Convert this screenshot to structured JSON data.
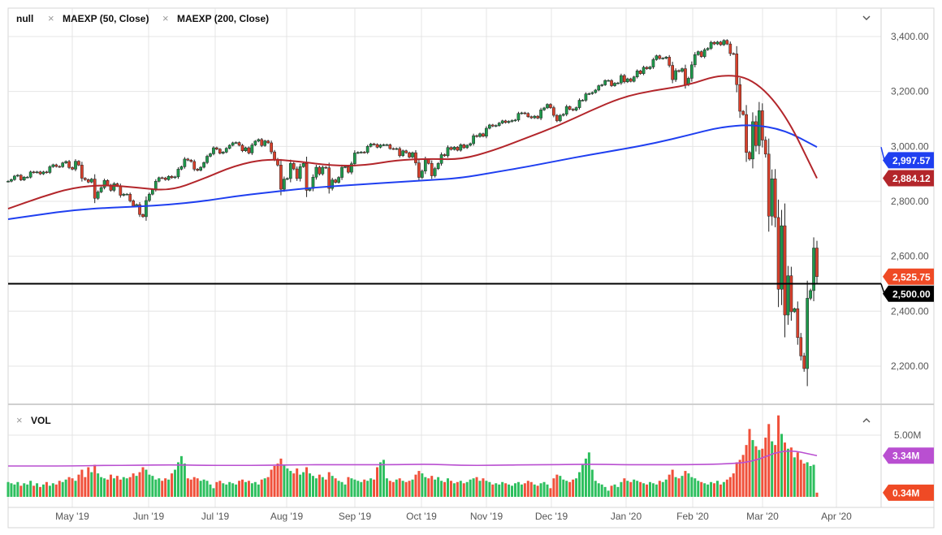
{
  "header": {
    "symbol_label": "null",
    "indicators": [
      {
        "label": "MAEXP (50, Close)",
        "color": "#b3262b"
      },
      {
        "label": "MAEXP (200, Close)",
        "color": "#1f3ff0"
      }
    ],
    "close_symbol": "×",
    "collapse_icon": "chevron-down-icon"
  },
  "volume_pane": {
    "label": "VOL",
    "close_symbol": "×",
    "collapse_icon": "chevron-up-icon"
  },
  "colors": {
    "up": "#1e9a4c",
    "down": "#d9402b",
    "vol_up": "#2dbf5e",
    "vol_down": "#f0503a",
    "ma50": "#b3262b",
    "ma200": "#1f3ff0",
    "vol_ma": "#b94fd1",
    "last_price": "#ef4a25",
    "grid": "#e4e4e4"
  },
  "chart_data": {
    "type": "candlestick",
    "title": "",
    "x_tick_labels": [
      "May '19",
      "Jun '19",
      "Jul '19",
      "Aug '19",
      "Sep '19",
      "Oct '19",
      "Nov '19",
      "Dec '19",
      "Jan '20",
      "Feb '20",
      "Mar '20",
      "Apr '20"
    ],
    "y_tick_labels": [
      "3,400.00",
      "3,200.00",
      "3,000.00",
      "2,800.00",
      "2,600.00",
      "2,400.00",
      "2,200.00"
    ],
    "y_ticks": [
      3400,
      3200,
      3000,
      2800,
      2600,
      2400,
      2200
    ],
    "ylim": [
      2130,
      3500
    ],
    "grid": true,
    "closes": [
      2873,
      2879,
      2892,
      2895,
      2878,
      2888,
      2888,
      2907,
      2905,
      2907,
      2900,
      2907,
      2905,
      2926,
      2933,
      2927,
      2926,
      2940,
      2945,
      2923,
      2917,
      2946,
      2932,
      2884,
      2879,
      2870,
      2881,
      2811,
      2834,
      2850,
      2876,
      2859,
      2840,
      2864,
      2856,
      2822,
      2826,
      2826,
      2802,
      2783,
      2788,
      2752,
      2744,
      2803,
      2826,
      2843,
      2873,
      2886,
      2885,
      2879,
      2891,
      2886,
      2889,
      2917,
      2926,
      2954,
      2950,
      2945,
      2917,
      2913,
      2924,
      2941,
      2964,
      2973,
      2995,
      2990,
      2975,
      2979,
      2993,
      3004,
      3013,
      3014,
      3004,
      2984,
      2995,
      2976,
      3005,
      3019,
      3025,
      3003,
      3020,
      3013,
      2980,
      2953,
      2932,
      2844,
      2881,
      2883,
      2938,
      2918,
      2883,
      2926,
      2938,
      2840,
      2847,
      2888,
      2924,
      2900,
      2924,
      2922,
      2847,
      2878,
      2869,
      2887,
      2924,
      2926,
      2906,
      2937,
      2976,
      2978,
      2979,
      2978,
      3000,
      3009,
      3007,
      2997,
      3005,
      3006,
      3006,
      2992,
      2991,
      2992,
      2966,
      2984,
      2977,
      2961,
      2977,
      2940,
      2887,
      2910,
      2952,
      2938,
      2893,
      2919,
      2938,
      2970,
      2966,
      2996,
      2989,
      2997,
      2986,
      3006,
      2995,
      3004,
      3010,
      3039,
      3036,
      3046,
      3037,
      3066,
      3078,
      3074,
      3076,
      3085,
      3093,
      3087,
      3091,
      3094,
      3096,
      3120,
      3122,
      3120,
      3108,
      3104,
      3110,
      3103,
      3133,
      3140,
      3153,
      3141,
      3113,
      3093,
      3113,
      3117,
      3145,
      3135,
      3132,
      3141,
      3168,
      3168,
      3191,
      3192,
      3196,
      3205,
      3221,
      3224,
      3240,
      3240,
      3221,
      3230,
      3231,
      3258,
      3235,
      3246,
      3237,
      3253,
      3275,
      3265,
      3288,
      3283,
      3289,
      3316,
      3330,
      3320,
      3321,
      3325,
      3295,
      3243,
      3276,
      3273,
      3283,
      3225,
      3248,
      3297,
      3334,
      3345,
      3327,
      3352,
      3357,
      3379,
      3373,
      3380,
      3370,
      3386,
      3373,
      3338,
      3337,
      3225,
      3128,
      3116,
      2978,
      2954,
      3090,
      3003,
      3130,
      3023,
      2972,
      2746,
      2882,
      2741,
      2480,
      2711,
      2386,
      2529,
      2398,
      2409,
      2304,
      2237,
      2191,
      2447,
      2475,
      2630,
      2525.75
    ],
    "series": [
      {
        "name": "MAEXP (50, Close)",
        "values": [
          2773,
          2815,
          2850,
          2860,
          2850,
          2838,
          2880,
          2930,
          2955,
          2945,
          2930,
          2930,
          2950,
          2955,
          2952,
          2985,
          3030,
          3075,
          3130,
          3180,
          3205,
          3222,
          3262,
          3250,
          3125,
          2884.12
        ]
      },
      {
        "name": "MAEXP (200, Close)",
        "values": [
          2735,
          2752,
          2768,
          2776,
          2781,
          2788,
          2800,
          2818,
          2832,
          2845,
          2855,
          2862,
          2870,
          2877,
          2885,
          2905,
          2925,
          2948,
          2970,
          2990,
          3012,
          3040,
          3070,
          3080,
          3060,
          2997.57
        ]
      }
    ],
    "horizontal_line": {
      "value": 2500,
      "label": "2,500.00"
    },
    "value_tags": [
      {
        "label": "2,997.57",
        "value": 2997.57,
        "color": "#1f3ff0"
      },
      {
        "label": "2,884.12",
        "value": 2884.12,
        "color": "#b3262b"
      },
      {
        "label": "2,525.75",
        "value": 2525.75,
        "color": "#ef4a25"
      }
    ],
    "volume": {
      "unit": "M",
      "ylim": [
        0,
        7
      ],
      "y_tick_labels": [
        "5.00M"
      ],
      "values": [
        1.2,
        1.1,
        1.0,
        1.2,
        0.9,
        1.1,
        1.0,
        1.3,
        0.9,
        1.1,
        0.8,
        1.0,
        1.2,
        0.9,
        1.1,
        1.0,
        1.3,
        1.2,
        1.4,
        1.6,
        1.5,
        1.3,
        1.8,
        2.2,
        1.6,
        2.4,
        2.0,
        2.6,
        1.9,
        1.6,
        1.5,
        1.4,
        1.8,
        1.5,
        1.7,
        1.4,
        1.6,
        1.5,
        1.6,
        1.9,
        1.7,
        2.0,
        2.4,
        2.2,
        1.8,
        1.7,
        1.4,
        1.5,
        1.3,
        1.5,
        1.4,
        1.9,
        2.2,
        2.8,
        3.3,
        2.7,
        1.5,
        1.4,
        1.6,
        1.5,
        1.3,
        1.4,
        1.3,
        1.0,
        0.7,
        1.2,
        1.3,
        1.1,
        1.0,
        1.2,
        1.1,
        1.0,
        1.3,
        1.4,
        1.2,
        1.3,
        1.1,
        1.2,
        1.0,
        1.4,
        1.5,
        1.6,
        2.2,
        2.5,
        2.7,
        3.1,
        2.6,
        2.3,
        2.1,
        1.9,
        2.3,
        1.8,
        2.0,
        2.4,
        1.9,
        1.7,
        1.5,
        1.8,
        1.6,
        1.4,
        2.0,
        1.7,
        1.5,
        1.3,
        1.2,
        1.0,
        1.6,
        1.5,
        1.4,
        1.3,
        1.2,
        1.4,
        1.3,
        1.5,
        1.4,
        2.4,
        2.8,
        3.0,
        1.5,
        1.3,
        1.2,
        1.4,
        1.5,
        1.3,
        1.2,
        1.3,
        1.4,
        1.8,
        2.1,
        1.9,
        1.6,
        1.5,
        1.7,
        1.4,
        1.6,
        1.3,
        1.2,
        1.5,
        1.3,
        1.1,
        1.2,
        1.3,
        1.1,
        1.2,
        1.4,
        1.5,
        1.6,
        1.3,
        1.5,
        1.3,
        1.2,
        1.0,
        1.1,
        1.0,
        1.2,
        1.1,
        1.0,
        0.9,
        1.1,
        1.2,
        1.0,
        1.1,
        1.3,
        1.2,
        1.0,
        0.9,
        1.1,
        1.2,
        1.0,
        0.7,
        1.5,
        1.8,
        1.7,
        1.4,
        1.3,
        1.2,
        1.4,
        1.5,
        2.0,
        2.6,
        3.1,
        3.6,
        2.2,
        1.3,
        1.1,
        1.0,
        0.8,
        0.5,
        0.9,
        1.0,
        0.8,
        1.2,
        1.5,
        1.3,
        1.2,
        1.4,
        1.3,
        1.2,
        1.1,
        1.0,
        1.2,
        1.1,
        1.0,
        1.3,
        1.2,
        1.4,
        1.8,
        2.2,
        1.6,
        1.5,
        1.7,
        2.1,
        1.9,
        1.6,
        1.5,
        1.3,
        1.2,
        1.1,
        1.0,
        1.2,
        1.1,
        1.3,
        1.0,
        1.2,
        1.4,
        1.6,
        1.9,
        2.8,
        3.0,
        3.4,
        4.2,
        5.5,
        4.6,
        4.1,
        3.8,
        3.9,
        4.8,
        5.9,
        4.5,
        4.2,
        6.6,
        5.1,
        4.4,
        3.9,
        4.0,
        3.2,
        3.6,
        3.0,
        2.7,
        2.8,
        2.5,
        2.6,
        0.34
      ],
      "ma_values": [
        2.5,
        2.5,
        2.5,
        2.55,
        2.55,
        2.6,
        2.55,
        2.55,
        2.55,
        2.6,
        2.6,
        2.6,
        2.6,
        2.65,
        2.55,
        2.55,
        2.6,
        2.6,
        2.65,
        2.6,
        2.6,
        2.6,
        2.65,
        2.8,
        3.9,
        3.34
      ],
      "value_tags": [
        {
          "label": "3.34M",
          "value": 3.34,
          "color": "#b94fd1"
        },
        {
          "label": "0.34M",
          "value": 0.34,
          "color": "#ef4a25"
        }
      ]
    }
  }
}
